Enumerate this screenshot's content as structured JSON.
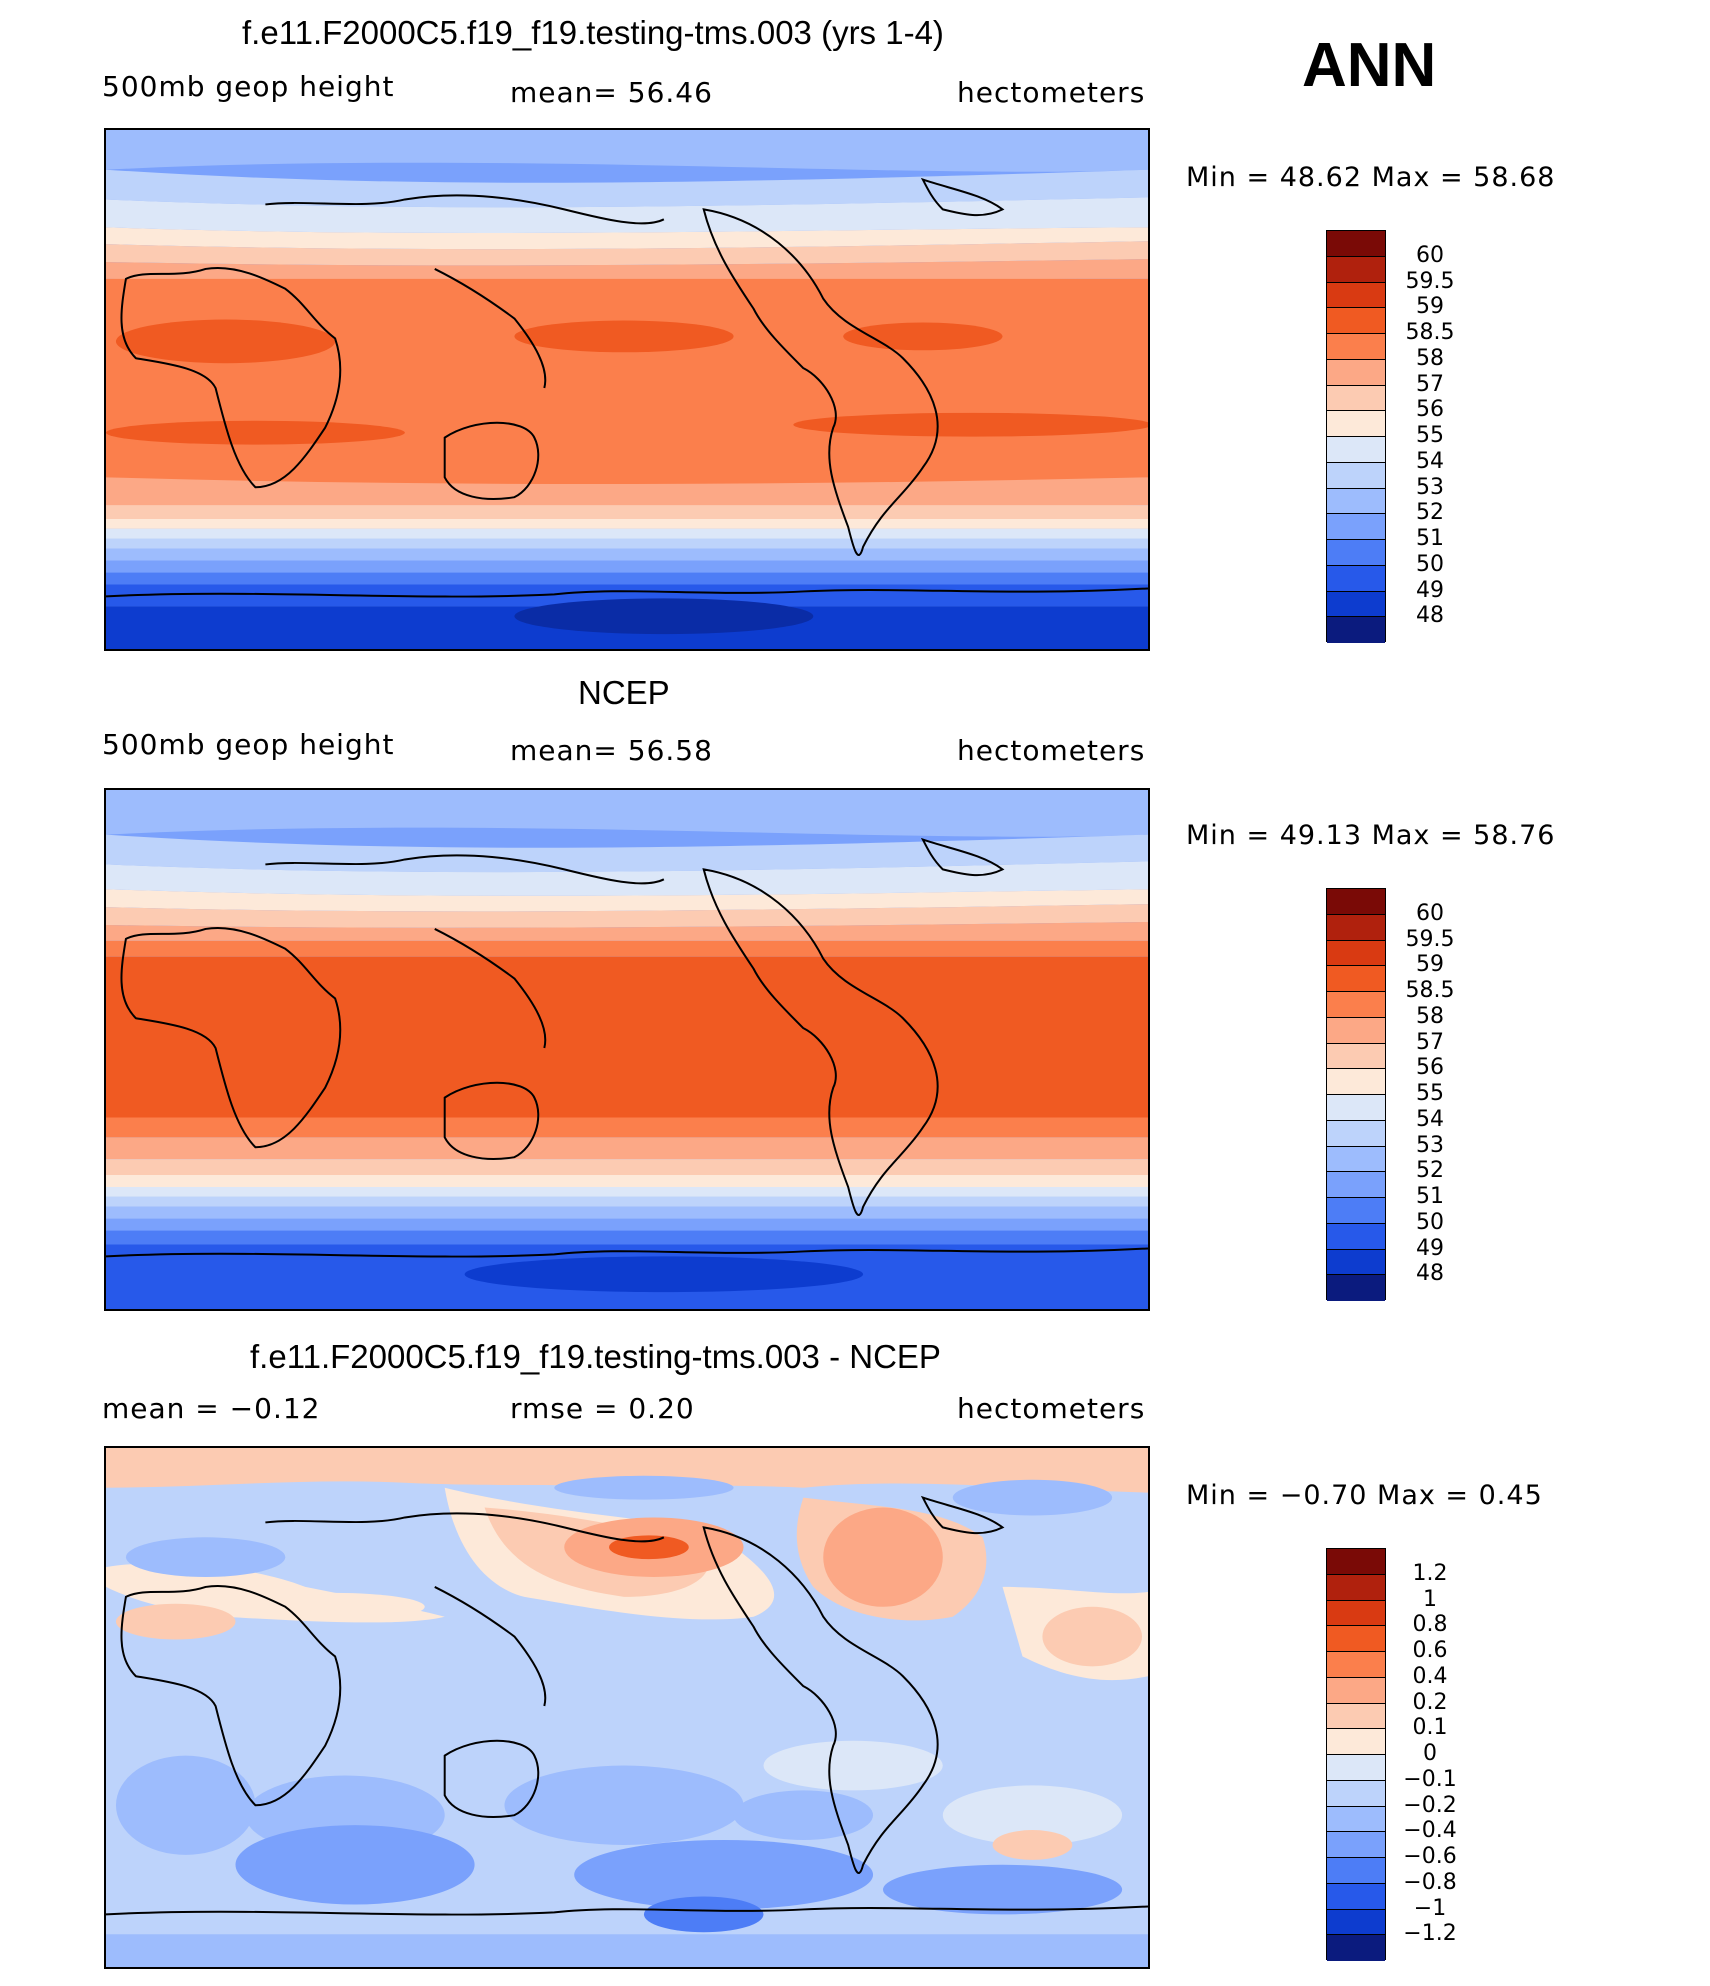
{
  "season": "ANN",
  "panels": [
    {
      "id": "model",
      "title": "f.e11.F2000C5.f19_f19.testing-tms.003 (yrs 1-4)",
      "left_label": "500mb  geop  height",
      "mid_label": "mean=   56.46",
      "right_label": "hectometers",
      "minmax": "Min  =    48.62  Max  =    58.68",
      "colorbar_labels": [
        "60",
        "59.5",
        "59",
        "58.5",
        "58",
        "57",
        "56",
        "55",
        "54",
        "53",
        "52",
        "51",
        "50",
        "49",
        "48"
      ]
    },
    {
      "id": "obs",
      "title": "NCEP",
      "left_label": "500mb  geop  height",
      "mid_label": "mean=   56.58",
      "right_label": "hectometers",
      "minmax": "Min  =    49.13  Max  =    58.76",
      "colorbar_labels": [
        "60",
        "59.5",
        "59",
        "58.5",
        "58",
        "57",
        "56",
        "55",
        "54",
        "53",
        "52",
        "51",
        "50",
        "49",
        "48"
      ]
    },
    {
      "id": "diff",
      "title": "f.e11.F2000C5.f19_f19.testing-tms.003 - NCEP",
      "left_label": "mean  =    −0.12",
      "mid_label": "rmse  =     0.20",
      "right_label": "hectometers",
      "minmax": "Min  =    −0.70  Max  =     0.45",
      "colorbar_labels": [
        "1.2",
        "1",
        "0.8",
        "0.6",
        "0.4",
        "0.2",
        "0.1",
        "0",
        "−0.1",
        "−0.2",
        "−0.4",
        "−0.6",
        "−0.8",
        "−1",
        "−1.2"
      ]
    }
  ],
  "colors": {
    "palette": [
      "#7a0a06",
      "#b0210d",
      "#d93a12",
      "#f05a22",
      "#fb7f4c",
      "#fca886",
      "#fccbb2",
      "#fde9d9",
      "#dce7f8",
      "#bdd3fb",
      "#9dbcfd",
      "#7aa1fc",
      "#4d7df6",
      "#2759ea",
      "#0d3ccf",
      "#0a2ca6",
      "#0b1b7e"
    ]
  }
}
